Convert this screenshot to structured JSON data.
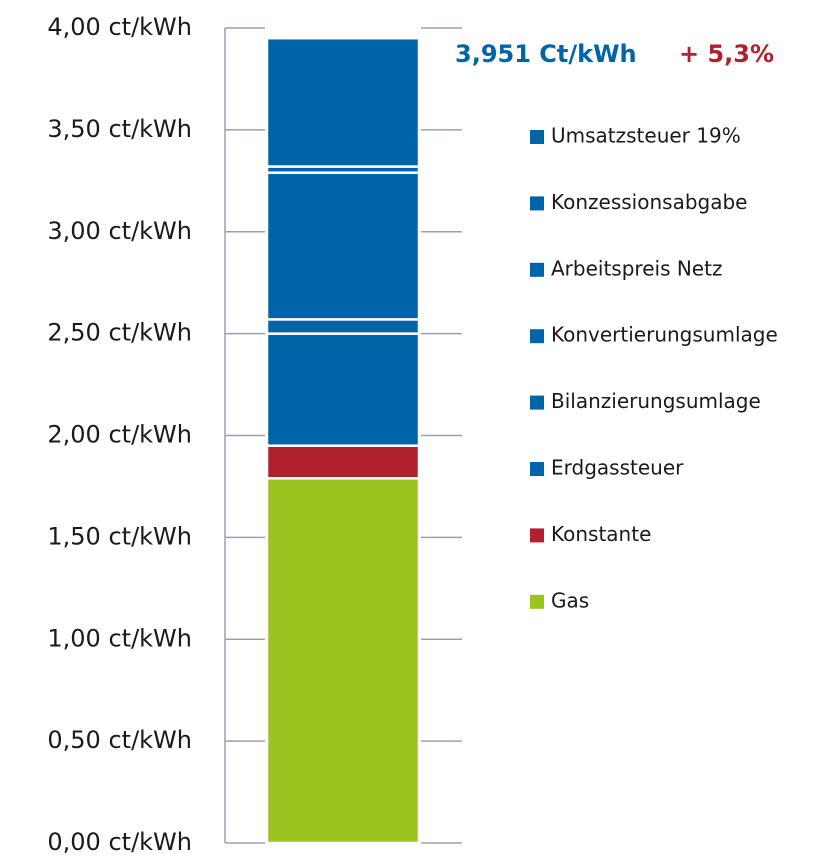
{
  "chart_data": {
    "type": "stacked-bar",
    "series": [
      {
        "name": "Gas",
        "color": "#9bc41e",
        "values": [
          1.79
        ]
      },
      {
        "name": "Konstante",
        "color": "#b0212d",
        "values": [
          0.16
        ]
      },
      {
        "name": "Erdgassteuer",
        "color": "#0064a8",
        "values": [
          0.55
        ]
      },
      {
        "name": "Bilanzierungsumlage",
        "color": "#0064a8",
        "values": [
          0.07
        ]
      },
      {
        "name": "Konvertierungsumlage",
        "color": "#0064a8",
        "values": [
          0.0
        ]
      },
      {
        "name": "Arbeitspreis Netz",
        "color": "#0064a8",
        "values": [
          0.72
        ]
      },
      {
        "name": "Konzessionsabgabe",
        "color": "#0064a8",
        "values": [
          0.03
        ]
      },
      {
        "name": "Umsatzsteuer 19%",
        "color": "#0064a8",
        "values": [
          0.63
        ]
      }
    ],
    "ylim": [
      0,
      4
    ],
    "yticks": [
      {
        "value": 0,
        "label": "0,00 ct/kWh"
      },
      {
        "value": 0.5,
        "label": "0,50 ct/kWh"
      },
      {
        "value": 1,
        "label": "1,00 ct/kWh"
      },
      {
        "value": 1.5,
        "label": "1,50 ct/kWh"
      },
      {
        "value": 2,
        "label": "2,00 ct/kWh"
      },
      {
        "value": 2.5,
        "label": "2,50 ct/kWh"
      },
      {
        "value": 3,
        "label": "3,00 ct/kWh"
      },
      {
        "value": 3.5,
        "label": "3,50 ct/kWh"
      },
      {
        "value": 4,
        "label": "4,00 ct/kWh"
      }
    ],
    "annotations": [
      {
        "text": "3,951 Ct/kWh",
        "color": "#0064a8"
      },
      {
        "text": "+ 5,3%",
        "color": "#b0212d"
      }
    ]
  }
}
